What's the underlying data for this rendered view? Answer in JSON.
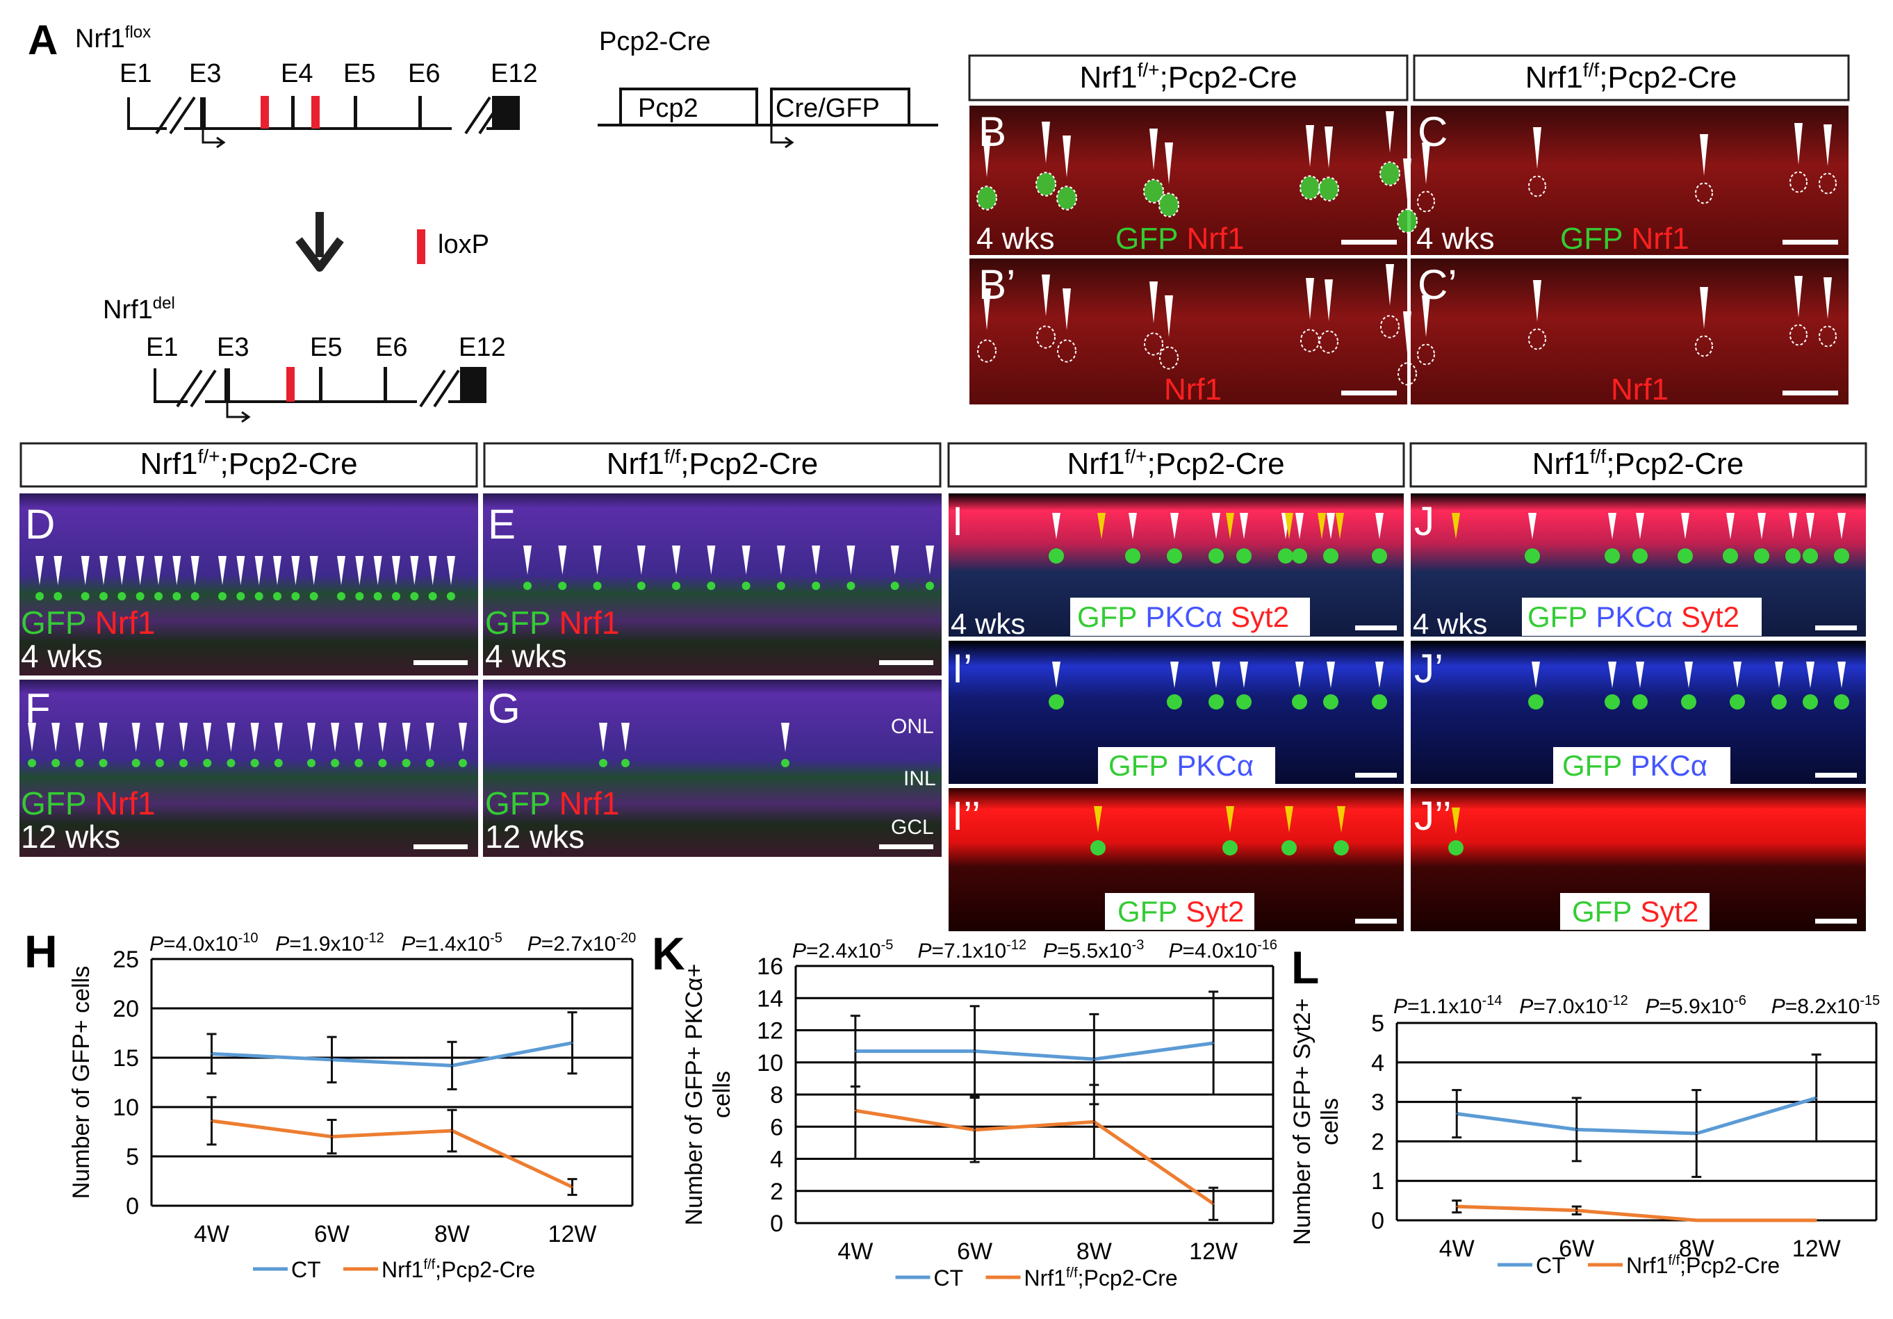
{
  "panel_letters": {
    "A": "A",
    "B": "B",
    "B2": "B’",
    "C": "C",
    "C2": "C’",
    "D": "D",
    "E": "E",
    "F": "F",
    "G": "G",
    "I": "I",
    "I2": "I’",
    "I3": "I’’",
    "J": "J",
    "J2": "J’",
    "J3": "J’’",
    "H": "H",
    "K": "K",
    "L": "L"
  },
  "panelA": {
    "flox_label": "Nrf1",
    "flox_sup": "flox",
    "flox_exons": [
      "E1",
      "E3",
      "E4",
      "E5",
      "E6",
      "E12"
    ],
    "del_label": "Nrf1",
    "del_sup": "del",
    "del_exons": [
      "E1",
      "E3",
      "E5",
      "E6",
      "E12"
    ],
    "transgene_title": "Pcp2-Cre",
    "promoter_box": "Pcp2",
    "cre_box": "Cre/GFP",
    "legend_loxp": "loxP"
  },
  "genotypes": {
    "het_base": "Nrf1",
    "het_sup": "f/+",
    "het_suffix": ";Pcp2-Cre",
    "ko_base": "Nrf1",
    "ko_sup": "f/f",
    "ko_suffix": ";Pcp2-Cre"
  },
  "micro": {
    "age_4": "4 wks",
    "age_12": "12 wks",
    "GFP": "GFP",
    "Nrf1": "Nrf1",
    "PKCa": "PKCα",
    "Syt2": "Syt2",
    "ONL": "ONL",
    "INL": "INL",
    "GCL": "GCL"
  },
  "colors": {
    "blue": "#5b9bd5",
    "orange": "#ed7d31",
    "green": "#33cc33",
    "red": "#ff2020",
    "pkc": "#4455ff"
  },
  "chart_data": [
    {
      "type": "line",
      "panel": "H",
      "categories": [
        "4W",
        "6W",
        "8W",
        "12W"
      ],
      "ylabel": "Number of GFP+ cells",
      "ylim": [
        0,
        25
      ],
      "yticks": [
        0,
        5,
        10,
        15,
        20,
        25
      ],
      "pvalues": [
        "4.0x10",
        "1.9x10",
        "1.4x10",
        "2.7x10"
      ],
      "pexp": [
        "-10",
        "-12",
        "-5",
        "-20"
      ],
      "series": [
        {
          "name": "CT",
          "values": [
            15.4,
            14.8,
            14.2,
            16.5
          ],
          "err": [
            2.0,
            2.3,
            2.4,
            3.1
          ],
          "color": "#5b9bd5"
        },
        {
          "name": "Nrf1f/f;Pcp2-Cre",
          "values": [
            8.6,
            7.0,
            7.6,
            1.9
          ],
          "err": [
            2.4,
            1.7,
            2.1,
            0.8
          ],
          "color": "#ed7d31"
        }
      ],
      "legend": [
        "CT",
        "Nrf1",
        "f/f",
        ";Pcp2-Cre"
      ]
    },
    {
      "type": "line",
      "panel": "K",
      "categories": [
        "4W",
        "6W",
        "8W",
        "12W"
      ],
      "ylabel": "Number of GFP+ PKCα+ cells",
      "ylim": [
        0,
        16
      ],
      "yticks": [
        0,
        2,
        4,
        6,
        8,
        10,
        12,
        14,
        16
      ],
      "pvalues": [
        "2.4x10",
        "7.1x10",
        "5.5x10",
        "4.0x10"
      ],
      "pexp": [
        "-5",
        "-12",
        "-3",
        "-16"
      ],
      "series": [
        {
          "name": "CT",
          "values": [
            10.7,
            10.7,
            10.2,
            11.2
          ],
          "err": [
            2.2,
            2.8,
            2.8,
            3.2
          ],
          "color": "#5b9bd5"
        },
        {
          "name": "Nrf1f/f;Pcp2-Cre",
          "values": [
            7.0,
            5.8,
            6.3,
            1.2
          ],
          "err": [
            3.0,
            2.0,
            2.3,
            1.0
          ],
          "color": "#ed7d31"
        }
      ],
      "legend": [
        "CT",
        "Nrf1",
        "f/f",
        ";Pcp2-Cre"
      ]
    },
    {
      "type": "line",
      "panel": "L",
      "categories": [
        "4W",
        "6W",
        "8W",
        "12W"
      ],
      "ylabel": "Number of GFP+ Syt2+ cells",
      "ylim": [
        0,
        5
      ],
      "yticks": [
        0,
        1,
        2,
        3,
        4,
        5
      ],
      "pvalues": [
        "1.1x10",
        "7.0x10",
        "5.9x10",
        "8.2x10"
      ],
      "pexp": [
        "-14",
        "-12",
        "-6",
        "-15"
      ],
      "series": [
        {
          "name": "CT",
          "values": [
            2.7,
            2.3,
            2.2,
            3.1
          ],
          "err": [
            0.6,
            0.8,
            1.1,
            1.1
          ],
          "color": "#5b9bd5"
        },
        {
          "name": "Nrf1f/f;Pcp2-Cre",
          "values": [
            0.35,
            0.25,
            0.0,
            0.0
          ],
          "err": [
            0.15,
            0.1,
            0.0,
            0.0
          ],
          "color": "#ed7d31"
        }
      ],
      "legend": [
        "CT",
        "Nrf1",
        "f/f",
        ";Pcp2-Cre"
      ]
    }
  ]
}
